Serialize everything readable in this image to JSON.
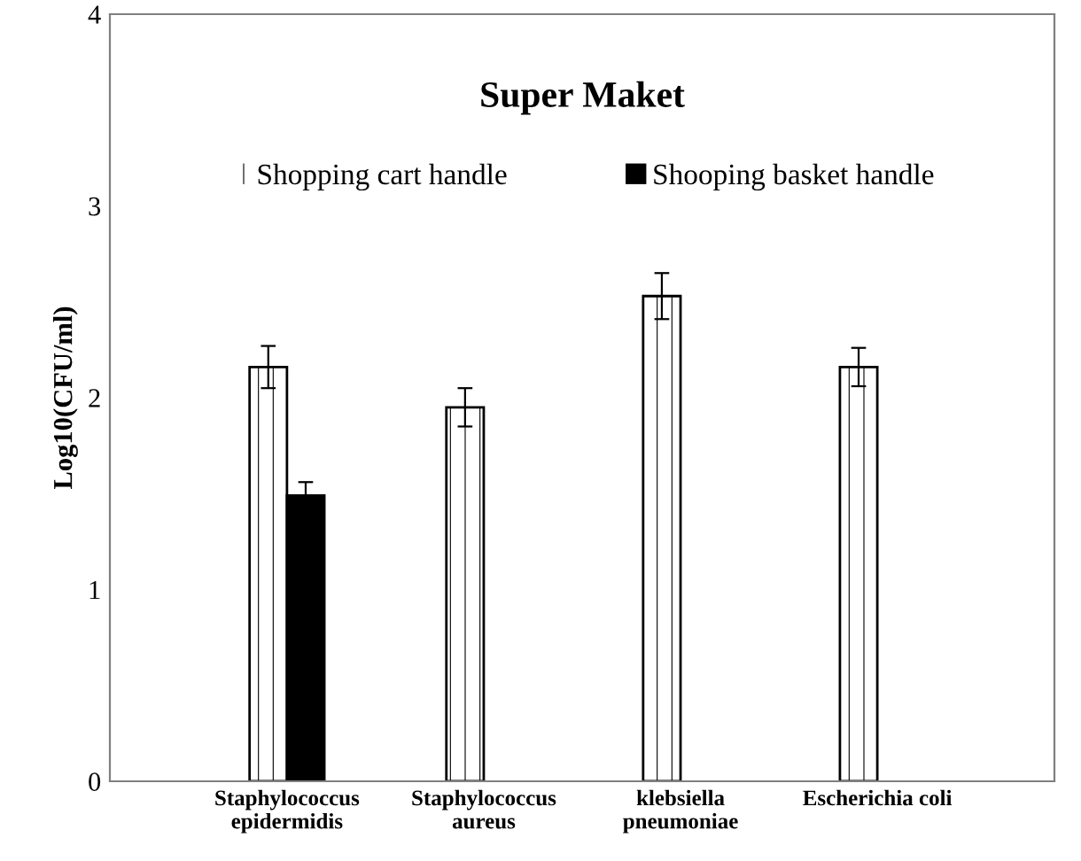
{
  "chart_data": {
    "type": "bar",
    "title": "Super Maket",
    "ylabel": "Log10(CFU/ml)",
    "categories": [
      "Staphylococcus\nepidermidis",
      "Staphylococcus\naureus",
      "klebsiella\npneumoniae",
      "Escherichia coli"
    ],
    "series": [
      {
        "name": "Shopping cart handle",
        "color": "#ffffff",
        "values": [
          2.16,
          1.95,
          2.53,
          2.16
        ],
        "errors": [
          0.11,
          0.1,
          0.12,
          0.1
        ]
      },
      {
        "name": "Shooping basket handle",
        "color": "#000000",
        "values": [
          1.49,
          null,
          null,
          null
        ],
        "errors": [
          0.07,
          null,
          null,
          null
        ]
      }
    ],
    "ylim": [
      0,
      4
    ],
    "yticks": [
      0,
      1,
      2,
      3,
      4
    ],
    "grid": false,
    "legend": "top"
  }
}
